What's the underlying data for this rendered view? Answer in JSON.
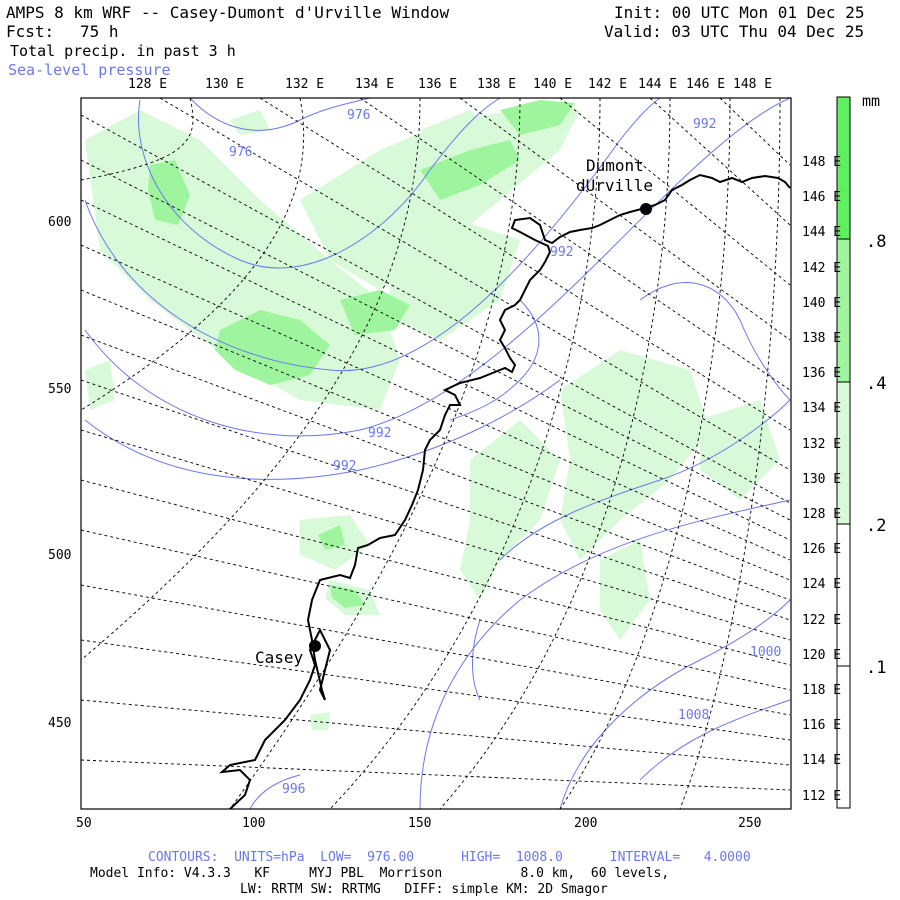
{
  "header": {
    "title": "AMPS 8 km WRF -- Casey-Dumont d'Urville Window",
    "fcst_label": "Fcst:",
    "fcst_value": "75 h",
    "field": "Total precip. in past 3 h",
    "overlay": "Sea-level pressure",
    "init": "Init: 00 UTC Mon 01 Dec 25",
    "valid": "Valid: 03 UTC Thu 04 Dec 25"
  },
  "top_lon_labels": [
    "128 E",
    "130 E",
    "132 E",
    "134 E",
    "136 E",
    "138 E",
    "140 E",
    "142 E",
    "144 E",
    "146 E",
    "148 E"
  ],
  "right_lon_labels": [
    "148 E",
    "146 E",
    "144 E",
    "142 E",
    "140 E",
    "138 E",
    "136 E",
    "134 E",
    "132 E",
    "130 E",
    "128 E",
    "126 E",
    "124 E",
    "122 E",
    "120 E",
    "118 E",
    "116 E",
    "114 E",
    "112 E"
  ],
  "x_axis": {
    "ticks": [
      "50",
      "100",
      "150",
      "200",
      "250"
    ]
  },
  "y_axis": {
    "ticks": [
      "600",
      "550",
      "500",
      "450"
    ]
  },
  "stations": [
    {
      "name_line1": "Dumont",
      "name_line2": "dUrville"
    },
    {
      "name_line1": "Casey",
      "name_line2": ""
    }
  ],
  "isobar_labels": [
    "976",
    "976",
    "992",
    "992",
    "992",
    "996",
    "1000",
    "1008",
    "992"
  ],
  "legend": {
    "unit": "mm",
    "levels": [
      ".8",
      ".4",
      ".2",
      ".1"
    ],
    "colors": {
      "high": "#5ef05e",
      "mid": "#9ef59e",
      "low": "#d8fad8",
      "none": "#ffffff"
    }
  },
  "footer": {
    "contours": "CONTOURS:  UNITS=hPa  LOW=  976.00      HIGH=  1008.0      INTERVAL=   4.0000",
    "model_line": "Model Info: V4.3.3   KF     MYJ PBL  Morrison          8.0 km,  60 levels,",
    "physics_line": "LW: RRTM SW: RRTMG   DIFF: simple KM: 2D Smagor"
  },
  "colors": {
    "isobar": "#6a78f0",
    "coast": "#000000",
    "grid": "#000000"
  }
}
